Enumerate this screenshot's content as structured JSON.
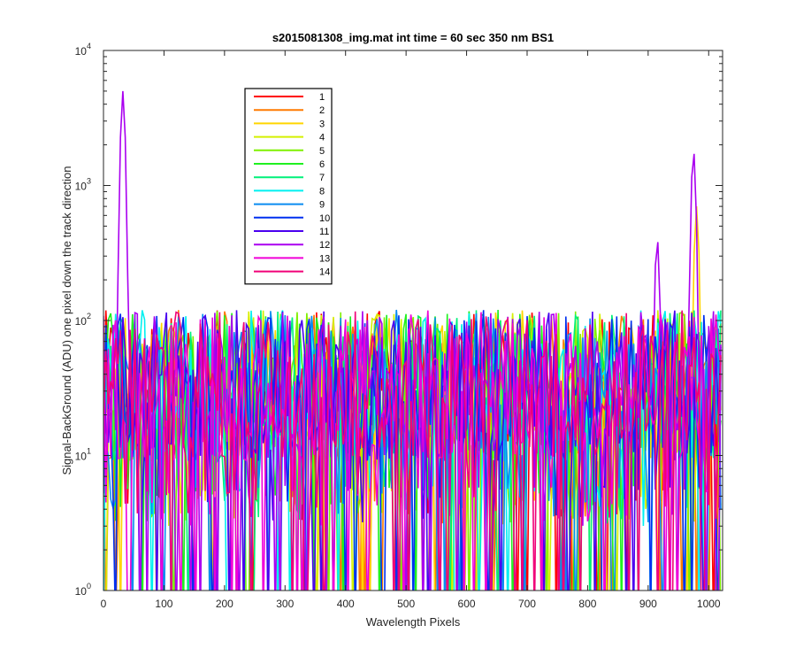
{
  "chart_data": {
    "type": "line",
    "title": "s2015081308_img.mat int time = 60 sec  350 nm BS1",
    "xlabel": "Wavelength Pixels",
    "ylabel": "Signal-BackGround (ADU) one pixel down the track direction",
    "xlim": [
      0,
      1023
    ],
    "ylim": [
      1,
      10000
    ],
    "y_scale": "log",
    "x_ticks": [
      0,
      100,
      200,
      300,
      400,
      500,
      600,
      700,
      800,
      900,
      1000
    ],
    "y_ticks": [
      {
        "value": 1,
        "base": "10",
        "exp": "0"
      },
      {
        "value": 10,
        "base": "10",
        "exp": "1"
      },
      {
        "value": 100,
        "base": "10",
        "exp": "2"
      },
      {
        "value": 1000,
        "base": "10",
        "exp": "3"
      },
      {
        "value": 10000,
        "base": "10",
        "exp": "4"
      }
    ],
    "legend_position": "top-left",
    "noise_range_adu": [
      3,
      120
    ],
    "features": [
      {
        "series": "12",
        "x_center": 32,
        "peak": 5000
      },
      {
        "series": "12",
        "x_center": 915,
        "peak": 400
      },
      {
        "series": "12",
        "x_center": 975,
        "peak": 1800
      },
      {
        "series": "3",
        "x_center": 980,
        "peak": 700
      }
    ],
    "series": [
      {
        "name": "1",
        "color": "#ff0000"
      },
      {
        "name": "2",
        "color": "#ff7a00"
      },
      {
        "name": "3",
        "color": "#ffd500"
      },
      {
        "name": "4",
        "color": "#d4f000"
      },
      {
        "name": "5",
        "color": "#7ff000"
      },
      {
        "name": "6",
        "color": "#1ff01f"
      },
      {
        "name": "7",
        "color": "#00f07a"
      },
      {
        "name": "8",
        "color": "#00f0f0"
      },
      {
        "name": "9",
        "color": "#0a8cf0"
      },
      {
        "name": "10",
        "color": "#0030f0"
      },
      {
        "name": "11",
        "color": "#4a00f0"
      },
      {
        "name": "12",
        "color": "#aa00f0"
      },
      {
        "name": "13",
        "color": "#f000d8"
      },
      {
        "name": "14",
        "color": "#f00078"
      }
    ]
  }
}
